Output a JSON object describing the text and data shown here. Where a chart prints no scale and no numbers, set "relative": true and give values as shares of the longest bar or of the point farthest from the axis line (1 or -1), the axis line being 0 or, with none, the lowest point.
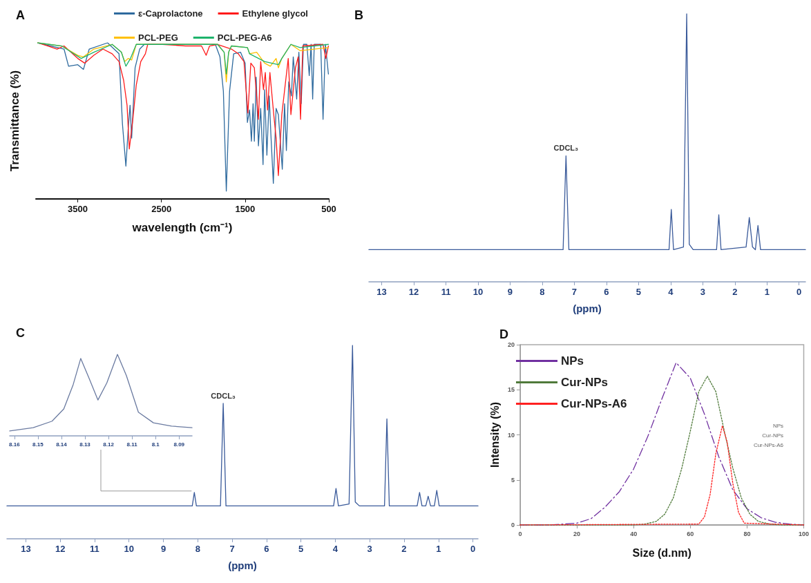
{
  "chart_data": [
    {
      "type": "line",
      "title": "A",
      "xlabel": "wavelength (cm⁻¹)",
      "ylabel": "Transmittance (%)",
      "relative": true,
      "tick_labels": "x",
      "marker": "none",
      "legend": "top",
      "xlim": [
        4000,
        500
      ],
      "xticks": [
        3500,
        2500,
        1500,
        500
      ],
      "series": [
        {
          "name": "ε-Caprolactone",
          "color": "#2e6a9e",
          "x": [
            3979,
            3664,
            3610,
            3500,
            3432,
            3363,
            3144,
            3007,
            2966,
            2925,
            2897,
            2875,
            2856,
            2815,
            2760,
            2705,
            2486,
            1856,
            1801,
            1760,
            1725,
            1686,
            1637,
            1555,
            1500,
            1473,
            1447,
            1425,
            1405,
            1390,
            1368,
            1341,
            1314,
            1286,
            1267,
            1240,
            1212,
            1193,
            1163,
            1130,
            1103,
            1056,
            1029,
            1007,
            979,
            947,
            925,
            884,
            858,
            830,
            803,
            762,
            734,
            712,
            693,
            674,
            597,
            569,
            541,
            505
          ],
          "values": [
            1.0,
            0.96,
            0.85,
            0.86,
            0.83,
            0.96,
            1.0,
            0.93,
            0.48,
            0.21,
            0.45,
            0.6,
            0.39,
            0.84,
            0.96,
            0.99,
            0.99,
            0.99,
            0.91,
            0.69,
            0.05,
            0.69,
            0.93,
            0.94,
            0.87,
            0.49,
            0.57,
            0.37,
            0.61,
            0.37,
            0.78,
            0.34,
            0.58,
            0.22,
            0.7,
            0.28,
            0.66,
            0.42,
            0.1,
            0.58,
            0.54,
            0.19,
            0.61,
            0.31,
            0.75,
            0.66,
            0.91,
            0.64,
            0.94,
            0.61,
            0.99,
            0.99,
            0.79,
            0.99,
            0.64,
            0.99,
            0.99,
            0.51,
            0.99,
            0.8
          ]
        },
        {
          "name": "Ethylene glycol",
          "color": "#ff1a1a",
          "x": [
            3979,
            3856,
            3747,
            3664,
            3500,
            3418,
            3308,
            3199,
            3089,
            3007,
            2952,
            2911,
            2884,
            2842,
            2801,
            2747,
            2692,
            2664,
            2486,
            2212,
            2021,
            1966,
            1925,
            1829,
            1664,
            1582,
            1514,
            1467,
            1432,
            1390,
            1341,
            1314,
            1281,
            1259,
            1232,
            1204,
            1158,
            1130,
            1103,
            1062,
            985,
            953,
            899,
            866,
            838,
            811,
            569,
            536,
            505
          ],
          "values": [
            1.0,
            0.98,
            0.96,
            0.98,
            0.9,
            0.87,
            0.92,
            0.96,
            0.93,
            0.88,
            0.76,
            0.6,
            0.32,
            0.51,
            0.73,
            0.88,
            0.93,
            0.99,
            0.99,
            0.98,
            0.98,
            0.92,
            0.98,
            0.99,
            0.96,
            0.93,
            0.88,
            0.55,
            0.87,
            0.84,
            0.51,
            0.88,
            0.7,
            0.81,
            0.57,
            0.81,
            0.54,
            0.39,
            0.15,
            0.54,
            0.9,
            0.54,
            0.84,
            0.91,
            0.51,
            0.98,
            0.99,
            0.9,
            0.98
          ]
        },
        {
          "name": "PCL-PEG",
          "color": "#ffc000",
          "x": [
            3979,
            3692,
            3500,
            3432,
            3308,
            3089,
            2979,
            2938,
            2897,
            2856,
            2801,
            2486,
            1829,
            1751,
            1725,
            1697,
            1664,
            1473,
            1447,
            1362,
            1267,
            1199,
            1130,
            1103,
            1062,
            953,
            844,
            505
          ],
          "values": [
            1.0,
            0.98,
            0.92,
            0.91,
            0.96,
            0.99,
            0.94,
            0.88,
            0.9,
            0.89,
            0.99,
            0.99,
            0.99,
            0.94,
            0.75,
            0.94,
            0.98,
            0.97,
            0.93,
            0.94,
            0.87,
            0.85,
            0.9,
            0.84,
            0.9,
            0.99,
            0.95,
            0.97
          ]
        },
        {
          "name": "PCL-PEG-A6",
          "color": "#1db36b",
          "x": [
            3979,
            3692,
            3459,
            3308,
            3089,
            2979,
            2925,
            2870,
            2801,
            2486,
            1829,
            1751,
            1725,
            1697,
            1664,
            1473,
            1447,
            1267,
            1185,
            1103,
            1062,
            953,
            844,
            505
          ],
          "values": [
            1.0,
            0.98,
            0.9,
            0.94,
            0.99,
            0.94,
            0.85,
            0.9,
            0.99,
            0.99,
            0.99,
            0.94,
            0.8,
            0.94,
            0.98,
            0.97,
            0.93,
            0.88,
            0.87,
            0.86,
            0.9,
            0.99,
            0.97,
            0.99
          ]
        }
      ]
    },
    {
      "type": "line",
      "title": "B",
      "xlabel": "(ppm)",
      "relative": true,
      "tick_labels": "x",
      "marker": "none",
      "xlim": [
        13.4,
        -0.2
      ],
      "xticks": [
        13,
        12,
        11,
        10,
        9,
        8,
        7,
        6,
        5,
        4,
        3,
        2,
        1,
        0
      ],
      "annotations": [
        {
          "text": "CDCL₃",
          "x": 7.26,
          "y": 0.47
        }
      ],
      "series": [
        {
          "color": "#3a5a9a",
          "x": [
            13.4,
            7.35,
            7.26,
            7.17,
            4.05,
            3.98,
            3.91,
            3.6,
            3.5,
            3.42,
            3.3,
            2.57,
            2.5,
            2.43,
            1.65,
            1.55,
            1.45,
            1.36,
            1.28,
            1.2,
            -0.2
          ],
          "values": [
            0.12,
            0.12,
            0.47,
            0.12,
            0.12,
            0.27,
            0.12,
            0.13,
            1,
            0.14,
            0.12,
            0.12,
            0.25,
            0.12,
            0.13,
            0.24,
            0.13,
            0.12,
            0.21,
            0.12,
            0.12
          ]
        }
      ]
    },
    {
      "type": "line",
      "title": "C",
      "xlabel": "(ppm)",
      "relative": true,
      "tick_labels": "x",
      "marker": "none",
      "xlim": [
        13.55,
        -0.15
      ],
      "xticks": [
        13,
        12,
        11,
        10,
        9,
        8,
        7,
        6,
        5,
        4,
        3,
        2,
        1,
        0
      ],
      "annotations": [
        {
          "text": "CDCL₃",
          "x": 7.26,
          "y": 0.7
        }
      ],
      "series": [
        {
          "color": "#3a5a9a",
          "x": [
            13.55,
            8.16,
            8.1,
            8.04,
            7.34,
            7.26,
            7.18,
            4.05,
            3.98,
            3.91,
            3.6,
            3.5,
            3.42,
            3.3,
            2.57,
            2.5,
            2.43,
            1.62,
            1.55,
            1.48,
            1.37,
            1.3,
            1.23,
            1.12,
            1.05,
            0.98,
            -0.15
          ],
          "values": [
            0.17,
            0.17,
            0.24,
            0.17,
            0.17,
            0.7,
            0.17,
            0.17,
            0.26,
            0.17,
            0.18,
            1,
            0.19,
            0.17,
            0.17,
            0.62,
            0.17,
            0.17,
            0.24,
            0.17,
            0.17,
            0.22,
            0.17,
            0.17,
            0.25,
            0.17,
            0.17
          ]
        }
      ]
    },
    {
      "type": "line",
      "relative": true,
      "tick_labels": "x",
      "marker": "none",
      "xlim": [
        8.162,
        8.0845
      ],
      "xticks": [
        8.16,
        8.15,
        8.14,
        8.13,
        8.12,
        8.11,
        8.1,
        8.09
      ],
      "series": [
        {
          "color": "#6a7aa0",
          "x": [
            8.162,
            8.152,
            8.144,
            8.139,
            8.135,
            8.1318,
            8.1283,
            8.1245,
            8.1207,
            8.1162,
            8.1124,
            8.1073,
            8.1009,
            8.0932,
            8.0845
          ],
          "values": [
            0.06,
            0.1,
            0.18,
            0.33,
            0.63,
            0.95,
            0.71,
            0.44,
            0.65,
            1,
            0.74,
            0.29,
            0.16,
            0.12,
            0.1
          ]
        }
      ]
    },
    {
      "type": "line",
      "title": "D",
      "xlabel": "Size (d.nm)",
      "ylabel": "Intensity (%)",
      "marker": "none",
      "legend": "top left",
      "xlim": [
        0,
        100
      ],
      "xticks": [
        0,
        20,
        40,
        60,
        80,
        100
      ],
      "ylim": [
        0,
        20
      ],
      "yticks": [
        0,
        5,
        10,
        15,
        20
      ],
      "annotations": [
        "NPs",
        "Cur-NPs",
        "Cur-NPs-A6"
      ],
      "series": [
        {
          "name": "NPs",
          "color": "#7030a0",
          "line_style": "dashed",
          "x": [
            0,
            10,
            20,
            25,
            30,
            35,
            40,
            45,
            50,
            55,
            60,
            65,
            70,
            75,
            80,
            85,
            90,
            95,
            100
          ],
          "values": [
            0,
            0,
            0.2,
            0.7,
            2,
            3.7,
            6.2,
            9.8,
            14,
            18,
            16.3,
            12.3,
            7.6,
            3.9,
            1.8,
            0.8,
            0.3,
            0.1,
            0
          ]
        },
        {
          "name": "Cur-NPs",
          "color": "#4f7a3a",
          "line_style": "dotted",
          "x": [
            0,
            40,
            44,
            48,
            51,
            54,
            57,
            60,
            63,
            66,
            69,
            72,
            75,
            78,
            81,
            84,
            88,
            92,
            100
          ],
          "values": [
            0,
            0,
            0.1,
            0.4,
            1.2,
            3,
            6.3,
            10.4,
            14.8,
            16.5,
            14.8,
            10.4,
            6.3,
            3,
            1.2,
            0.4,
            0.1,
            0,
            0
          ]
        },
        {
          "name": "Cur-NPs-A6",
          "color": "#ff2020",
          "line_style": "dotted",
          "x": [
            0,
            63,
            65,
            67,
            69,
            71.3,
            73,
            75,
            77,
            79,
            100
          ],
          "values": [
            0,
            0.1,
            0.9,
            3.4,
            7.9,
            11,
            9.2,
            4.6,
            1.4,
            0.2,
            0
          ]
        }
      ]
    }
  ]
}
